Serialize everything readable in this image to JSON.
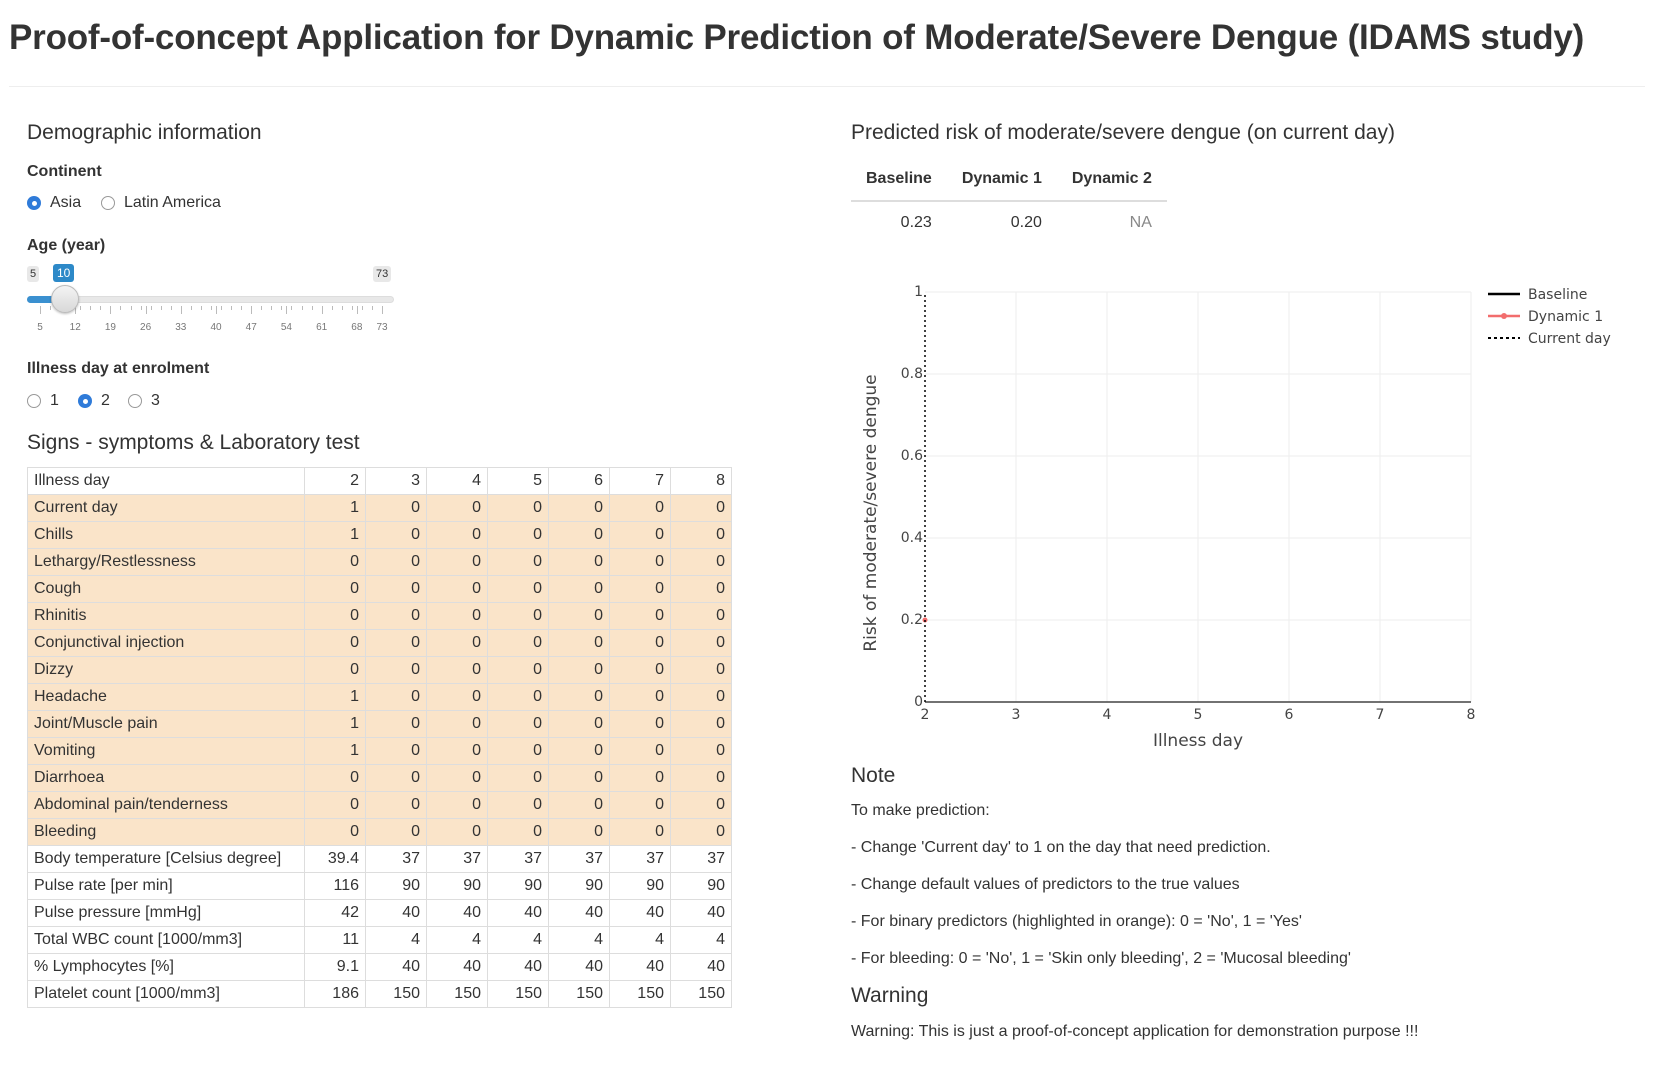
{
  "page_title": "Proof-of-concept Application for Dynamic Prediction of Moderate/Severe Dengue (IDAMS study)",
  "demographic": {
    "heading": "Demographic information",
    "continent_label": "Continent",
    "continent_options": [
      "Asia",
      "Latin America"
    ],
    "continent_selected": "Asia",
    "age_label": "Age (year)",
    "age_min": "5",
    "age_max": "73",
    "age_value": "10",
    "age_ticks": [
      "5",
      "12",
      "19",
      "26",
      "33",
      "40",
      "47",
      "54",
      "61",
      "68",
      "73"
    ],
    "illness_day_label": "Illness day at enrolment",
    "illness_day_options": [
      "1",
      "2",
      "3"
    ],
    "illness_day_selected": "2"
  },
  "signs": {
    "heading": "Signs - symptoms & Laboratory test",
    "header_row": {
      "label": "Illness day",
      "values": [
        "2",
        "3",
        "4",
        "5",
        "6",
        "7",
        "8"
      ]
    },
    "rows": [
      {
        "label": "Current day",
        "binary": true,
        "values": [
          "1",
          "0",
          "0",
          "0",
          "0",
          "0",
          "0"
        ]
      },
      {
        "label": "Chills",
        "binary": true,
        "values": [
          "1",
          "0",
          "0",
          "0",
          "0",
          "0",
          "0"
        ]
      },
      {
        "label": "Lethargy/Restlessness",
        "binary": true,
        "values": [
          "0",
          "0",
          "0",
          "0",
          "0",
          "0",
          "0"
        ]
      },
      {
        "label": "Cough",
        "binary": true,
        "values": [
          "0",
          "0",
          "0",
          "0",
          "0",
          "0",
          "0"
        ]
      },
      {
        "label": "Rhinitis",
        "binary": true,
        "values": [
          "0",
          "0",
          "0",
          "0",
          "0",
          "0",
          "0"
        ]
      },
      {
        "label": "Conjunctival injection",
        "binary": true,
        "values": [
          "0",
          "0",
          "0",
          "0",
          "0",
          "0",
          "0"
        ]
      },
      {
        "label": "Dizzy",
        "binary": true,
        "values": [
          "0",
          "0",
          "0",
          "0",
          "0",
          "0",
          "0"
        ]
      },
      {
        "label": "Headache",
        "binary": true,
        "values": [
          "1",
          "0",
          "0",
          "0",
          "0",
          "0",
          "0"
        ]
      },
      {
        "label": "Joint/Muscle pain",
        "binary": true,
        "values": [
          "1",
          "0",
          "0",
          "0",
          "0",
          "0",
          "0"
        ]
      },
      {
        "label": "Vomiting",
        "binary": true,
        "values": [
          "1",
          "0",
          "0",
          "0",
          "0",
          "0",
          "0"
        ]
      },
      {
        "label": "Diarrhoea",
        "binary": true,
        "values": [
          "0",
          "0",
          "0",
          "0",
          "0",
          "0",
          "0"
        ]
      },
      {
        "label": "Abdominal pain/tenderness",
        "binary": true,
        "values": [
          "0",
          "0",
          "0",
          "0",
          "0",
          "0",
          "0"
        ]
      },
      {
        "label": "Bleeding",
        "binary": true,
        "values": [
          "0",
          "0",
          "0",
          "0",
          "0",
          "0",
          "0"
        ]
      },
      {
        "label": "Body temperature [Celsius degree]",
        "binary": false,
        "values": [
          "39.4",
          "37",
          "37",
          "37",
          "37",
          "37",
          "37"
        ]
      },
      {
        "label": "Pulse rate [per min]",
        "binary": false,
        "values": [
          "116",
          "90",
          "90",
          "90",
          "90",
          "90",
          "90"
        ]
      },
      {
        "label": "Pulse pressure [mmHg]",
        "binary": false,
        "values": [
          "42",
          "40",
          "40",
          "40",
          "40",
          "40",
          "40"
        ]
      },
      {
        "label": "Total WBC count [1000/mm3]",
        "binary": false,
        "values": [
          "11",
          "4",
          "4",
          "4",
          "4",
          "4",
          "4"
        ]
      },
      {
        "label": "% Lymphocytes [%]",
        "binary": false,
        "values": [
          "9.1",
          "40",
          "40",
          "40",
          "40",
          "40",
          "40"
        ]
      },
      {
        "label": "Platelet count [1000/mm3]",
        "binary": false,
        "values": [
          "186",
          "150",
          "150",
          "150",
          "150",
          "150",
          "150"
        ]
      }
    ]
  },
  "prediction": {
    "heading": "Predicted risk of moderate/severe dengue (on current day)",
    "columns": [
      "Baseline",
      "Dynamic 1",
      "Dynamic 2"
    ],
    "values": [
      "0.23",
      "0.20",
      "NA"
    ]
  },
  "chart_data": {
    "type": "line",
    "xlabel": "Illness day",
    "ylabel": "Risk of moderate/severe dengue",
    "xlim": [
      2,
      8
    ],
    "ylim": [
      0,
      1
    ],
    "x_ticks": [
      "2",
      "3",
      "4",
      "5",
      "6",
      "7",
      "8"
    ],
    "y_ticks": [
      "0",
      "0.2",
      "0.4",
      "0.6",
      "0.8",
      "1"
    ],
    "grid": true,
    "legend_placement": "top-right",
    "series": [
      {
        "name": "Baseline",
        "style": "solid",
        "color": "#000000",
        "x": [],
        "y": []
      },
      {
        "name": "Dynamic 1",
        "style": "solid-marker",
        "color": "#f26d6d",
        "x": [
          2
        ],
        "y": [
          0.2
        ]
      },
      {
        "name": "Current day",
        "style": "dotted",
        "color": "#000000",
        "x": [
          2,
          2
        ],
        "y": [
          0,
          1
        ]
      }
    ]
  },
  "note": {
    "heading": "Note",
    "lines": [
      "To make prediction:",
      "- Change 'Current day' to 1 on the day that need prediction.",
      "- Change default values of predictors to the true values",
      "- For binary predictors (highlighted in orange): 0 = 'No', 1 = 'Yes'",
      "- For bleeding: 0 = 'No', 1 = 'Skin only bleeding', 2 = 'Mucosal bleeding'"
    ]
  },
  "warning": {
    "heading": "Warning",
    "text": "Warning: This is just a proof-of-concept application for demonstration purpose !!!"
  }
}
